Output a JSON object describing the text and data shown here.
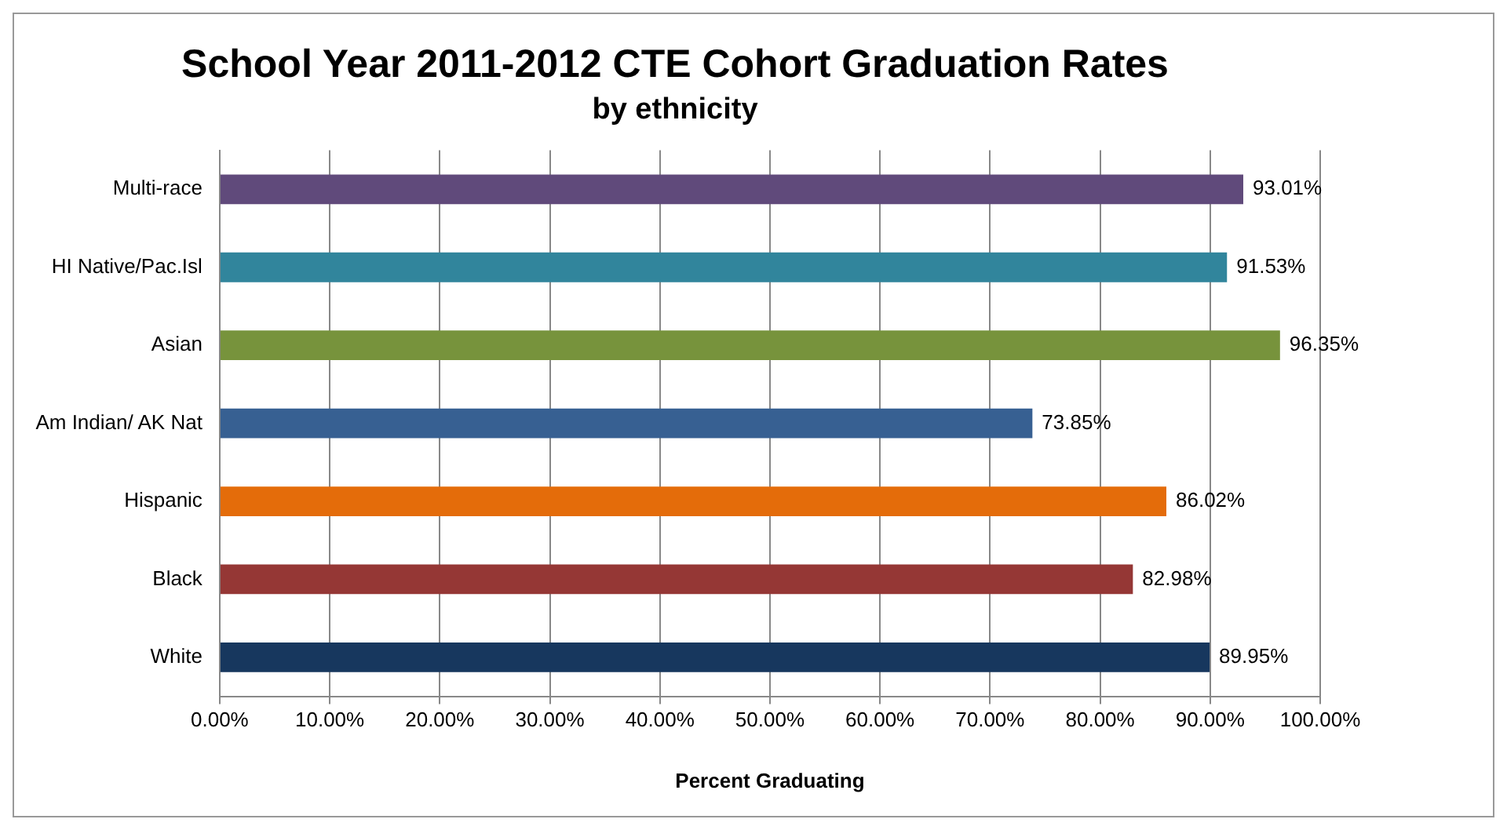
{
  "chart_data": {
    "type": "bar",
    "orientation": "horizontal",
    "title": "School Year 2011-2012 CTE Cohort Graduation Rates",
    "subtitle": "by ethnicity",
    "xlabel": "Percent Graduating",
    "categories": [
      "Multi-race",
      "HI Native/Pac.Isl",
      "Asian",
      "Am Indian/ AK Nat",
      "Hispanic",
      "Black",
      "White"
    ],
    "values": [
      93.01,
      91.53,
      96.35,
      73.85,
      86.02,
      82.98,
      89.95
    ],
    "value_labels": [
      "93.01%",
      "91.53%",
      "96.35%",
      "73.85%",
      "86.02%",
      "82.98%",
      "89.95%"
    ],
    "colors": [
      "#604a7b",
      "#31859c",
      "#77933c",
      "#376092",
      "#e46c0a",
      "#953735",
      "#17375e"
    ],
    "xlim": [
      0,
      100
    ],
    "xticks": [
      {
        "value": 0,
        "label": "0.00%"
      },
      {
        "value": 10,
        "label": "10.00%"
      },
      {
        "value": 20,
        "label": "20.00%"
      },
      {
        "value": 30,
        "label": "30.00%"
      },
      {
        "value": 40,
        "label": "40.00%"
      },
      {
        "value": 50,
        "label": "50.00%"
      },
      {
        "value": 60,
        "label": "60.00%"
      },
      {
        "value": 70,
        "label": "70.00%"
      },
      {
        "value": 80,
        "label": "80.00%"
      },
      {
        "value": 90,
        "label": "90.00%"
      },
      {
        "value": 100,
        "label": "100.00%"
      }
    ],
    "grid": "x",
    "legend": false
  }
}
